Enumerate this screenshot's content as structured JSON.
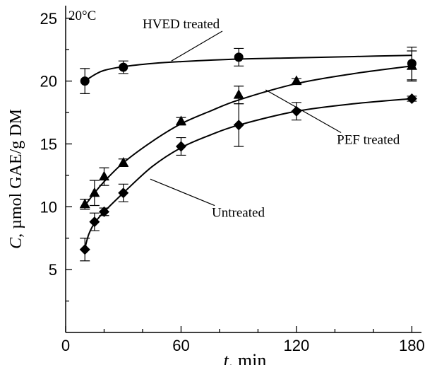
{
  "chart_data": {
    "type": "scatter",
    "annotation_corner": "20°C",
    "xlabel_italic": "t",
    "xlabel_rest": ", min",
    "ylabel_italic": "C",
    "ylabel_rest": ", µmol GAE/g DM",
    "xlim": [
      0,
      185
    ],
    "ylim": [
      0,
      26
    ],
    "x_ticks": [
      0,
      60,
      120,
      180
    ],
    "y_ticks": [
      5,
      10,
      15,
      20,
      25
    ],
    "x_minor_ticks": [
      20,
      40,
      80,
      100,
      140,
      160
    ],
    "y_minor_ticks": [
      2.5,
      7.5,
      12.5,
      17.5,
      22.5
    ],
    "series": [
      {
        "name": "HVED treated",
        "marker": "circle",
        "x": [
          10,
          30,
          90,
          180
        ],
        "y": [
          20.0,
          21.1,
          21.9,
          21.4
        ],
        "err": [
          1.0,
          0.5,
          0.7,
          1.3
        ],
        "fit": [
          [
            10,
            20.0
          ],
          [
            15,
            20.5
          ],
          [
            20,
            20.85
          ],
          [
            30,
            21.15
          ],
          [
            45,
            21.4
          ],
          [
            60,
            21.55
          ],
          [
            90,
            21.75
          ],
          [
            120,
            21.85
          ],
          [
            150,
            21.95
          ],
          [
            180,
            22.05
          ]
        ]
      },
      {
        "name": "PEF treated",
        "marker": "triangle",
        "x": [
          10,
          15,
          20,
          30,
          60,
          90,
          120,
          180
        ],
        "y": [
          10.2,
          11.1,
          12.4,
          13.5,
          16.8,
          18.9,
          20.0,
          21.2
        ],
        "err": [
          0.4,
          1.0,
          0.7,
          0.3,
          0.3,
          0.7,
          0.2,
          1.2
        ],
        "fit": [
          [
            10,
            10.1
          ],
          [
            15,
            11.1
          ],
          [
            20,
            12.0
          ],
          [
            30,
            13.5
          ],
          [
            45,
            15.2
          ],
          [
            60,
            16.6
          ],
          [
            75,
            17.6
          ],
          [
            90,
            18.5
          ],
          [
            120,
            19.8
          ],
          [
            150,
            20.6
          ],
          [
            180,
            21.2
          ]
        ]
      },
      {
        "name": "Untreated",
        "marker": "diamond",
        "x": [
          10,
          15,
          20,
          30,
          60,
          90,
          120,
          180
        ],
        "y": [
          6.6,
          8.8,
          9.6,
          11.1,
          14.8,
          16.5,
          17.6,
          18.6
        ],
        "err": [
          0.9,
          0.7,
          0.3,
          0.7,
          0.7,
          1.7,
          0.7,
          0.2
        ],
        "fit": [
          [
            10,
            6.7
          ],
          [
            12,
            7.8
          ],
          [
            15,
            8.7
          ],
          [
            20,
            9.6
          ],
          [
            30,
            11.1
          ],
          [
            45,
            13.2
          ],
          [
            60,
            14.7
          ],
          [
            75,
            15.7
          ],
          [
            90,
            16.5
          ],
          [
            120,
            17.6
          ],
          [
            150,
            18.2
          ],
          [
            180,
            18.6
          ]
        ]
      }
    ],
    "series_labels": [
      {
        "name": "HVED treated",
        "label_x": 40,
        "label_y": 24.2,
        "anchor_x": 55,
        "anchor_y": 21.6
      },
      {
        "name": "PEF treated",
        "label_x": 141,
        "label_y": 15.0,
        "anchor_x": 104,
        "anchor_y": 19.3
      },
      {
        "name": "Untreated",
        "label_x": 76,
        "label_y": 9.2,
        "anchor_x": 44,
        "anchor_y": 12.2
      }
    ]
  }
}
